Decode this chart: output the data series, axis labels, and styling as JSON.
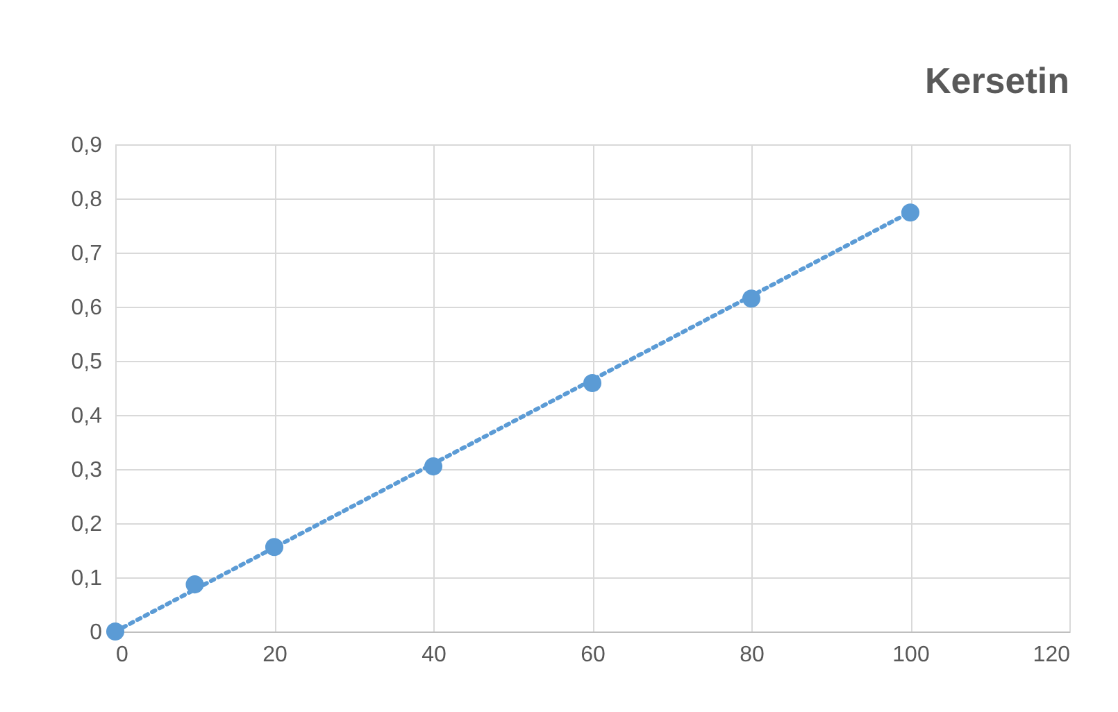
{
  "chart_data": {
    "type": "scatter",
    "title": "Kersetin",
    "x": [
      0,
      10,
      20,
      40,
      60,
      80,
      100
    ],
    "series": [
      {
        "color": "#5b9bd5",
        "values": [
          0,
          0.087,
          0.156,
          0.305,
          0.459,
          0.615,
          0.774
        ],
        "marker": "circle"
      },
      {
        "type": "line",
        "color": "#5b9bd5",
        "x": [
          0,
          100
        ],
        "values": [
          0,
          0.775
        ],
        "line_style": "dotted"
      }
    ],
    "xlim": [
      0,
      120
    ],
    "xticks": [
      0,
      20,
      40,
      60,
      80,
      100,
      120
    ],
    "ylim": [
      0,
      0.9
    ],
    "yticks": [
      0,
      {
        "value": 0.1,
        "label": "0,1"
      },
      {
        "value": 0.2,
        "label": "0,2"
      },
      {
        "value": 0.3,
        "label": "0,3"
      },
      {
        "value": 0.4,
        "label": "0,4"
      },
      {
        "value": 0.5,
        "label": "0,5"
      },
      {
        "value": 0.6,
        "label": "0,6"
      },
      {
        "value": 0.7,
        "label": "0,7"
      },
      {
        "value": 0.8,
        "label": "0,8"
      },
      {
        "value": 0.9,
        "label": "0,9"
      }
    ],
    "grid": true
  }
}
